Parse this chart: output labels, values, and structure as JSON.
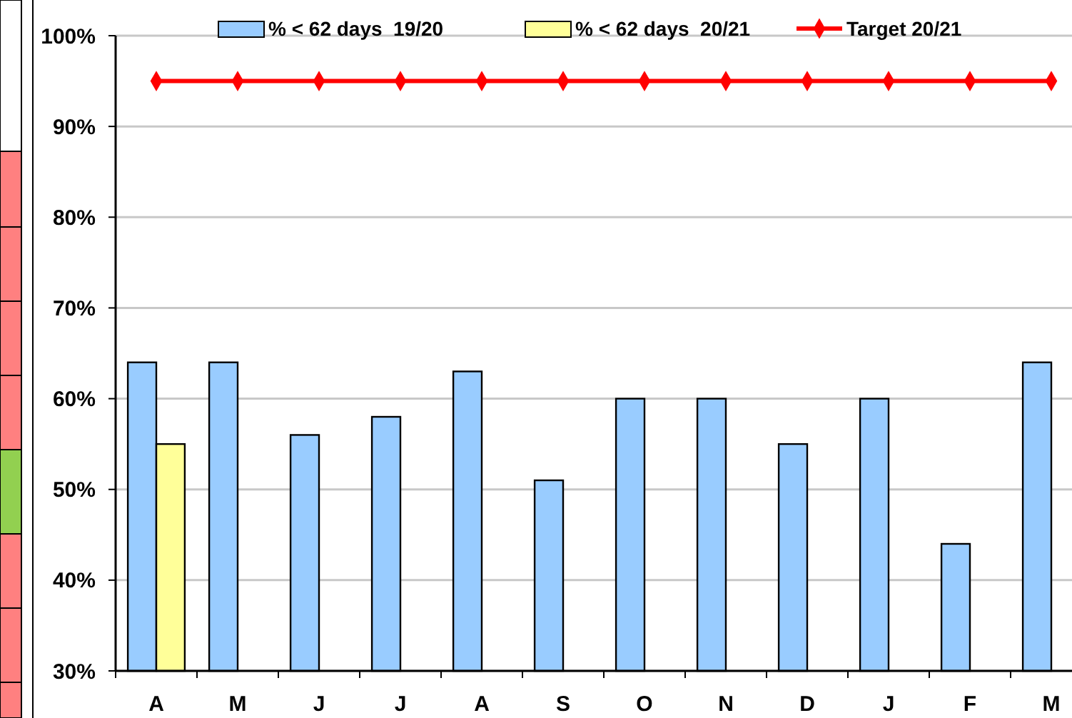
{
  "chart_data": {
    "type": "bar",
    "categories": [
      "A",
      "M",
      "J",
      "J",
      "A",
      "S",
      "O",
      "N",
      "D",
      "J",
      "F",
      "M"
    ],
    "series": [
      {
        "name": "% < 62 days  19/20",
        "color": "#99ccff",
        "values": [
          64,
          64,
          56,
          58,
          63,
          51,
          60,
          60,
          55,
          60,
          44,
          64
        ]
      },
      {
        "name": "% < 62 days  20/21",
        "color": "#ffff99",
        "values": [
          55,
          null,
          null,
          null,
          null,
          null,
          null,
          null,
          null,
          null,
          null,
          null
        ]
      },
      {
        "name": "Target 20/21",
        "type": "line",
        "color": "#ff0000",
        "marker": "diamond",
        "values": [
          95,
          95,
          95,
          95,
          95,
          95,
          95,
          95,
          95,
          95,
          95,
          95
        ]
      }
    ],
    "ylim": [
      30,
      100
    ],
    "yticks": [
      {
        "value": 30,
        "label": "30%"
      },
      {
        "value": 40,
        "label": "40%"
      },
      {
        "value": 50,
        "label": "50%"
      },
      {
        "value": 60,
        "label": "60%"
      },
      {
        "value": 70,
        "label": "70%"
      },
      {
        "value": 80,
        "label": "80%"
      },
      {
        "value": 90,
        "label": "90%"
      },
      {
        "value": 100,
        "label": "100%"
      }
    ],
    "grid": "y",
    "legend": "top"
  }
}
